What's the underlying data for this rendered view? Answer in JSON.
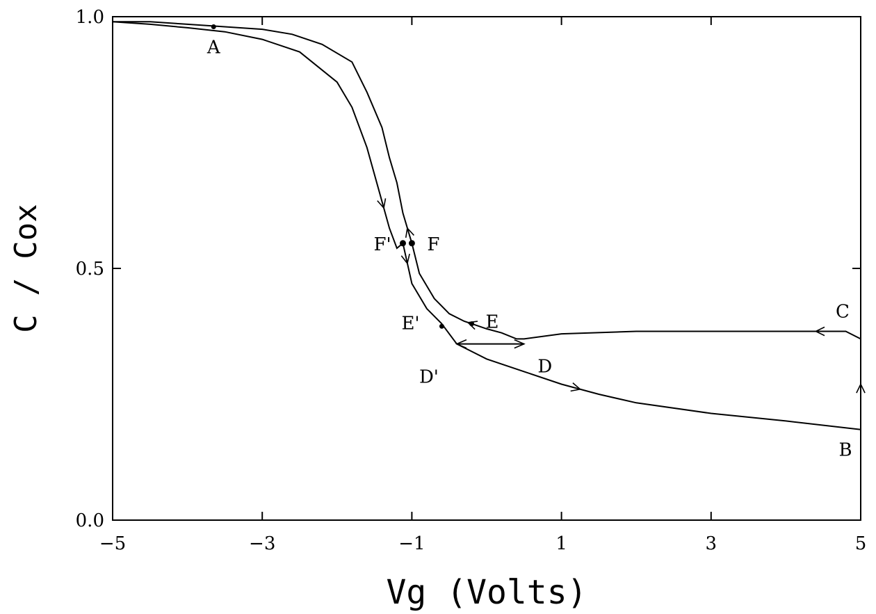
{
  "chart_data": {
    "type": "line",
    "xlabel": "Vg (Volts)",
    "ylabel": "C / Cox",
    "xlim": [
      -5,
      5
    ],
    "ylim": [
      0,
      1
    ],
    "xticks": [
      "-5",
      "-3",
      "-1",
      "1",
      "3",
      "5"
    ],
    "yticks": [
      "0.0",
      "0.5",
      "1.0"
    ],
    "series": [
      {
        "x": [
          -5,
          -4.5,
          -4,
          -3.5,
          -3,
          -2.5,
          -2,
          -1.8,
          -1.6,
          -1.45,
          -1.3,
          -1.2,
          -1.12,
          -1.0,
          -0.8,
          -0.6,
          -0.4,
          0,
          0.5,
          1,
          1.5,
          2,
          3,
          4,
          5
        ],
        "y": [
          0.99,
          0.985,
          0.978,
          0.97,
          0.955,
          0.93,
          0.87,
          0.82,
          0.74,
          0.66,
          0.58,
          0.54,
          0.55,
          0.47,
          0.42,
          0.39,
          0.35,
          0.32,
          0.295,
          0.27,
          0.25,
          0.233,
          0.212,
          0.197,
          0.18
        ]
      },
      {
        "x": [
          5,
          5
        ],
        "y": [
          0.18,
          0.36
        ]
      },
      {
        "x": [
          5,
          4.8,
          4,
          3,
          2,
          1,
          0.5,
          0.4,
          0.2,
          0,
          -0.2,
          -0.3,
          -0.5,
          -0.7,
          -0.9,
          -1.0,
          -1.12,
          -1.2,
          -1.3,
          -1.4,
          -1.6,
          -1.8,
          -2.2,
          -2.6,
          -3,
          -3.5,
          -4,
          -4.5,
          -5
        ],
        "y": [
          0.36,
          0.375,
          0.375,
          0.375,
          0.375,
          0.37,
          0.36,
          0.36,
          0.372,
          0.38,
          0.39,
          0.395,
          0.41,
          0.44,
          0.49,
          0.55,
          0.61,
          0.67,
          0.72,
          0.78,
          0.85,
          0.91,
          0.945,
          0.965,
          0.975,
          0.98,
          0.985,
          0.99,
          0.99
        ]
      },
      {
        "x": [
          -0.4,
          0.5
        ],
        "y": [
          0.35,
          0.35
        ]
      }
    ],
    "points": [
      {
        "label": "A",
        "x": -3.65,
        "y": 0.98
      },
      {
        "label": "B",
        "x": 5,
        "y": 0.18
      },
      {
        "label": "C",
        "x": 5,
        "y": 0.375
      },
      {
        "label": "D",
        "x": 0.5,
        "y": 0.36
      },
      {
        "label": "D'",
        "x": -0.4,
        "y": 0.35
      },
      {
        "label": "E",
        "x": -0.2,
        "y": 0.39
      },
      {
        "label": "E'",
        "x": -0.6,
        "y": 0.385
      },
      {
        "label": "F",
        "x": -1.0,
        "y": 0.55
      },
      {
        "label": "F'",
        "x": -1.12,
        "y": 0.55
      }
    ],
    "grid": false
  }
}
